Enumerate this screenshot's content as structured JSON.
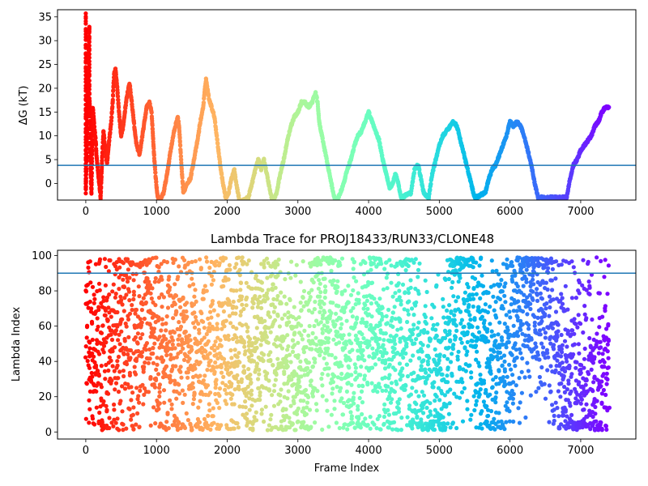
{
  "chart_data": [
    {
      "type": "scatter",
      "title": "",
      "xlabel": "",
      "ylabel": "ΔG (kT)",
      "xlim": [
        -400,
        7780
      ],
      "ylim": [
        -3.5,
        36.5
      ],
      "xticks": [
        0,
        1000,
        2000,
        3000,
        4000,
        5000,
        6000,
        7000
      ],
      "yticks": [
        0,
        5,
        10,
        15,
        20,
        25,
        30,
        35
      ],
      "grid": false,
      "colormap": "rainbow (red at frame 0 → violet at frame 7400)",
      "hline": {
        "y": 3.8,
        "color": "#1f77b4"
      },
      "series_points": [
        [
          0,
          36
        ],
        [
          0,
          30
        ],
        [
          0,
          27
        ],
        [
          0,
          22
        ],
        [
          0,
          18
        ],
        [
          0,
          14
        ],
        [
          0,
          11
        ],
        [
          0,
          6
        ],
        [
          0,
          3
        ],
        [
          0,
          -2
        ],
        [
          50,
          33
        ],
        [
          50,
          25
        ],
        [
          50,
          19
        ],
        [
          60,
          14
        ],
        [
          60,
          8
        ],
        [
          70,
          2
        ],
        [
          80,
          -2
        ],
        [
          100,
          16
        ],
        [
          120,
          12
        ],
        [
          140,
          9
        ],
        [
          150,
          6
        ],
        [
          170,
          3
        ],
        [
          190,
          0
        ],
        [
          210,
          -3
        ],
        [
          230,
          5
        ],
        [
          250,
          11
        ],
        [
          270,
          8
        ],
        [
          300,
          4
        ],
        [
          330,
          9
        ],
        [
          360,
          13
        ],
        [
          380,
          17
        ],
        [
          400,
          23
        ],
        [
          420,
          24
        ],
        [
          440,
          21
        ],
        [
          460,
          17
        ],
        [
          480,
          13
        ],
        [
          500,
          10
        ],
        [
          530,
          12
        ],
        [
          560,
          16
        ],
        [
          590,
          19
        ],
        [
          620,
          21
        ],
        [
          650,
          17
        ],
        [
          680,
          13
        ],
        [
          700,
          10
        ],
        [
          720,
          8
        ],
        [
          760,
          6
        ],
        [
          800,
          10
        ],
        [
          830,
          13
        ],
        [
          860,
          16
        ],
        [
          900,
          17
        ],
        [
          930,
          15
        ],
        [
          950,
          10
        ],
        [
          970,
          5
        ],
        [
          990,
          1
        ],
        [
          1010,
          -2
        ],
        [
          1030,
          -4
        ],
        [
          1100,
          -2
        ],
        [
          1150,
          2
        ],
        [
          1200,
          7
        ],
        [
          1250,
          11
        ],
        [
          1300,
          14
        ],
        [
          1320,
          12
        ],
        [
          1340,
          7
        ],
        [
          1360,
          2
        ],
        [
          1380,
          -2
        ],
        [
          1430,
          0
        ],
        [
          1480,
          1
        ],
        [
          1530,
          5
        ],
        [
          1580,
          9
        ],
        [
          1620,
          13
        ],
        [
          1660,
          16
        ],
        [
          1700,
          22
        ],
        [
          1740,
          18
        ],
        [
          1780,
          16
        ],
        [
          1820,
          14
        ],
        [
          1860,
          9
        ],
        [
          1900,
          4
        ],
        [
          1940,
          0
        ],
        [
          1980,
          -3
        ],
        [
          2020,
          -2
        ],
        [
          2060,
          1
        ],
        [
          2100,
          3
        ],
        [
          2140,
          -1
        ],
        [
          2180,
          -4
        ],
        [
          2300,
          -3
        ],
        [
          2350,
          0
        ],
        [
          2400,
          3
        ],
        [
          2440,
          5
        ],
        [
          2480,
          3
        ],
        [
          2520,
          5
        ],
        [
          2560,
          2
        ],
        [
          2600,
          -1
        ],
        [
          2640,
          -4
        ],
        [
          2700,
          -2
        ],
        [
          2750,
          2
        ],
        [
          2800,
          5
        ],
        [
          2850,
          9
        ],
        [
          2900,
          12
        ],
        [
          2950,
          14
        ],
        [
          3000,
          15
        ],
        [
          3050,
          17
        ],
        [
          3100,
          17
        ],
        [
          3150,
          16
        ],
        [
          3200,
          17
        ],
        [
          3250,
          19
        ],
        [
          3280,
          17
        ],
        [
          3300,
          13
        ],
        [
          3340,
          10
        ],
        [
          3380,
          7
        ],
        [
          3420,
          4
        ],
        [
          3460,
          1
        ],
        [
          3500,
          -2
        ],
        [
          3540,
          -4
        ],
        [
          3600,
          -2
        ],
        [
          3650,
          0
        ],
        [
          3700,
          3
        ],
        [
          3750,
          5
        ],
        [
          3800,
          8
        ],
        [
          3850,
          10
        ],
        [
          3900,
          11
        ],
        [
          3950,
          13
        ],
        [
          4000,
          15
        ],
        [
          4050,
          13
        ],
        [
          4100,
          11
        ],
        [
          4150,
          9
        ],
        [
          4200,
          5
        ],
        [
          4250,
          2
        ],
        [
          4300,
          -1
        ],
        [
          4340,
          0
        ],
        [
          4380,
          2
        ],
        [
          4420,
          0
        ],
        [
          4460,
          -3
        ],
        [
          4600,
          -2
        ],
        [
          4650,
          3
        ],
        [
          4700,
          4
        ],
        [
          4740,
          1
        ],
        [
          4780,
          -2
        ],
        [
          4850,
          -3
        ],
        [
          4900,
          2
        ],
        [
          4950,
          5
        ],
        [
          5000,
          8
        ],
        [
          5050,
          10
        ],
        [
          5100,
          11
        ],
        [
          5150,
          12
        ],
        [
          5200,
          13
        ],
        [
          5250,
          12
        ],
        [
          5300,
          9
        ],
        [
          5350,
          6
        ],
        [
          5400,
          3
        ],
        [
          5450,
          0
        ],
        [
          5500,
          -3
        ],
        [
          5650,
          -2
        ],
        [
          5700,
          1
        ],
        [
          5750,
          3
        ],
        [
          5800,
          4
        ],
        [
          5850,
          6
        ],
        [
          5900,
          8
        ],
        [
          5950,
          10
        ],
        [
          6000,
          13
        ],
        [
          6050,
          12
        ],
        [
          6100,
          13
        ],
        [
          6150,
          12
        ],
        [
          6200,
          10
        ],
        [
          6250,
          7
        ],
        [
          6300,
          4
        ],
        [
          6350,
          0
        ],
        [
          6400,
          -3
        ],
        [
          6800,
          -3
        ],
        [
          6850,
          1
        ],
        [
          6900,
          4
        ],
        [
          6950,
          5
        ],
        [
          7000,
          7
        ],
        [
          7050,
          8
        ],
        [
          7100,
          9
        ],
        [
          7150,
          10
        ],
        [
          7200,
          12
        ],
        [
          7250,
          13
        ],
        [
          7300,
          15
        ],
        [
          7350,
          16
        ],
        [
          7400,
          16
        ]
      ]
    },
    {
      "type": "scatter",
      "title": "Lambda Trace for PROJ18433/RUN33/CLONE48",
      "xlabel": "Frame Index",
      "ylabel": "Lambda Index",
      "xlim": [
        -400,
        7780
      ],
      "ylim": [
        -4,
        103
      ],
      "xticks": [
        0,
        1000,
        2000,
        3000,
        4000,
        5000,
        6000,
        7000
      ],
      "yticks": [
        0,
        20,
        40,
        60,
        80,
        100
      ],
      "grid": false,
      "colormap": "rainbow (red at frame 0 → violet at frame 7400)",
      "hline": {
        "y": 90,
        "color": "#1f77b4"
      },
      "approx_points": 3700,
      "x_range": [
        0,
        7400
      ],
      "y_range": [
        1,
        99
      ],
      "band_centers": [
        [
          0,
          50
        ],
        [
          250,
          45
        ],
        [
          450,
          50
        ],
        [
          700,
          55
        ],
        [
          900,
          60
        ],
        [
          1150,
          45
        ],
        [
          1400,
          50
        ],
        [
          1650,
          35
        ],
        [
          1900,
          60
        ],
        [
          2100,
          50
        ],
        [
          2300,
          40
        ],
        [
          2550,
          55
        ],
        [
          2800,
          40
        ],
        [
          3050,
          35
        ],
        [
          3300,
          70
        ],
        [
          3550,
          55
        ],
        [
          3800,
          35
        ],
        [
          4050,
          60
        ],
        [
          4300,
          50
        ],
        [
          4550,
          55
        ],
        [
          4800,
          30
        ],
        [
          5050,
          30
        ],
        [
          5250,
          70
        ],
        [
          5450,
          60
        ],
        [
          5700,
          40
        ],
        [
          5950,
          50
        ],
        [
          6200,
          80
        ],
        [
          6450,
          75
        ],
        [
          6700,
          45
        ],
        [
          6950,
          30
        ],
        [
          7200,
          30
        ],
        [
          7350,
          40
        ]
      ]
    }
  ]
}
